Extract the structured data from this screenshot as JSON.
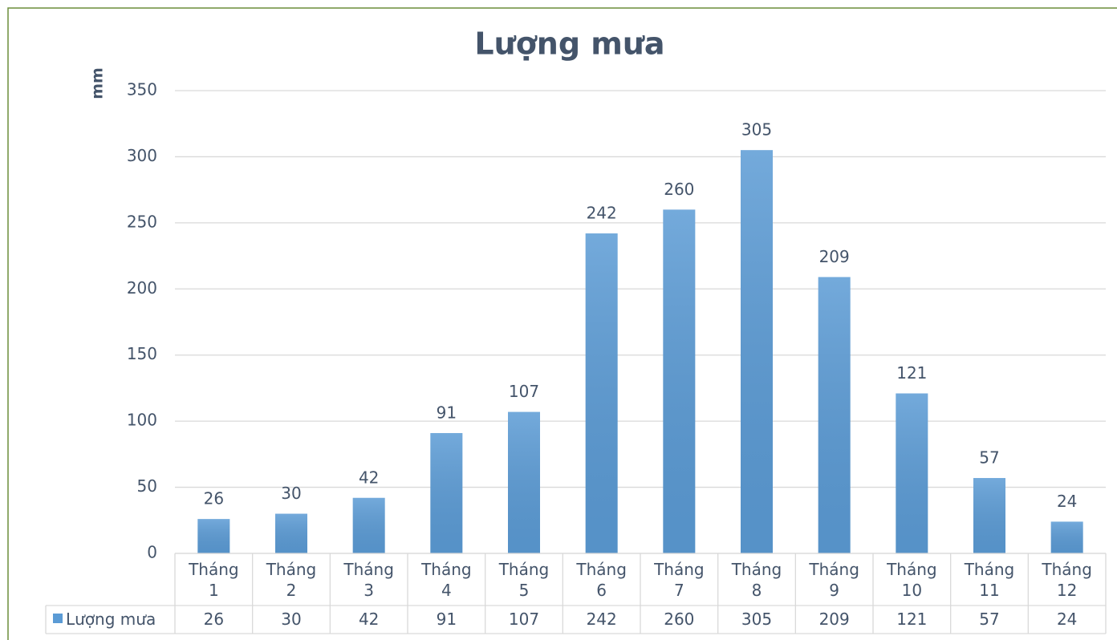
{
  "chart_data": {
    "type": "bar",
    "title": "Lượng mưa",
    "y_label": "mm",
    "categories": [
      "Tháng 1",
      "Tháng 2",
      "Tháng 3",
      "Tháng 4",
      "Tháng 5",
      "Tháng 6",
      "Tháng 7",
      "Tháng 8",
      "Tháng 9",
      "Tháng 10",
      "Tháng 11",
      "Tháng 12"
    ],
    "series": [
      {
        "name": "Lượng mưa",
        "color": "#5b9bd5",
        "values": [
          26,
          30,
          42,
          91,
          107,
          242,
          260,
          305,
          209,
          121,
          57,
          24
        ]
      }
    ],
    "ylim": [
      0,
      350
    ],
    "yticks": [
      0,
      50,
      100,
      150,
      200,
      250,
      300,
      350
    ],
    "grid": true,
    "data_labels": true,
    "data_table": true
  }
}
